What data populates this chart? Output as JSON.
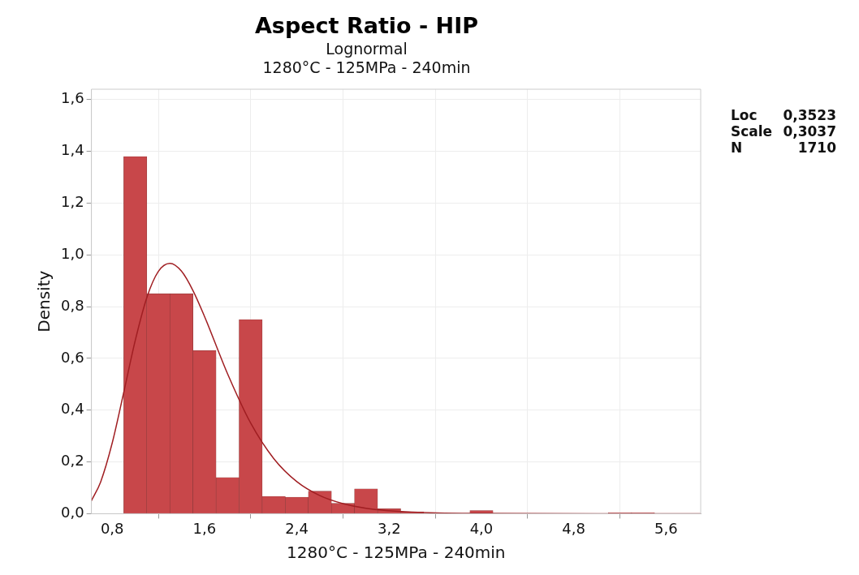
{
  "chart_data": {
    "type": "histogram",
    "title": "Aspect Ratio - HIP",
    "subtitle": "Lognormal\n1280°C - 125MPa - 240min",
    "xlabel": "1280°C - 125MPa - 240min",
    "ylabel": "Density",
    "bins": [
      0.9,
      1.1,
      1.3,
      1.5,
      1.7,
      1.9,
      2.1,
      2.3,
      2.5,
      2.7,
      2.9,
      3.1,
      3.3,
      3.5,
      3.7,
      3.9,
      4.1,
      4.3,
      4.5,
      4.7,
      4.9,
      5.1,
      5.3,
      5.5
    ],
    "values": [
      1.38,
      0.85,
      0.85,
      0.63,
      0.14,
      0.75,
      0.067,
      0.064,
      0.087,
      0.04,
      0.096,
      0.019,
      0.007,
      null,
      null,
      0.012,
      null,
      0,
      0,
      0,
      0,
      0.003,
      0.003
    ],
    "color": "#c8474a",
    "series": [
      {
        "type": "line",
        "color": "#a01e22",
        "x": [
          0.62,
          0.7,
          0.8,
          0.9,
          1.0,
          1.1,
          1.2,
          1.3,
          1.4,
          1.5,
          1.6,
          1.8,
          2.0,
          2.2,
          2.4,
          2.6,
          2.8,
          3.0,
          3.4,
          4.0,
          5.0,
          5.9
        ],
        "values": [
          0.05,
          0.123,
          0.273,
          0.469,
          0.67,
          0.835,
          0.936,
          0.967,
          0.937,
          0.862,
          0.762,
          0.54,
          0.35,
          0.213,
          0.124,
          0.07,
          0.039,
          0.021,
          0.006,
          0.001,
          0,
          0
        ]
      }
    ],
    "xlim": [
      0.62,
      5.9
    ],
    "ylim": [
      0,
      1.64
    ],
    "xticks": [
      {
        "value": 0.8,
        "label": "0,8"
      },
      {
        "value": 1.6,
        "label": "1,6"
      },
      {
        "value": 2.4,
        "label": "2,4"
      },
      {
        "value": 3.2,
        "label": "3,2"
      },
      {
        "value": 4.0,
        "label": "4,0"
      },
      {
        "value": 4.8,
        "label": "4,8"
      },
      {
        "value": 5.6,
        "label": "5,6"
      }
    ],
    "yticks": [
      {
        "value": 0,
        "label": "0,0"
      },
      {
        "value": 0.2,
        "label": "0,2"
      },
      {
        "value": 0.4,
        "label": "0,4"
      },
      {
        "value": 0.6,
        "label": "0,6"
      },
      {
        "value": 0.8,
        "label": "0,8"
      },
      {
        "value": 1.0,
        "label": "1,0"
      },
      {
        "value": 1.2,
        "label": "1,2"
      },
      {
        "value": 1.4,
        "label": "1,4"
      },
      {
        "value": 1.6,
        "label": "1,6"
      }
    ],
    "grid": true,
    "annotations": [
      "Loc 0,3523",
      "Scale 0,3037",
      "N 1710"
    ]
  }
}
